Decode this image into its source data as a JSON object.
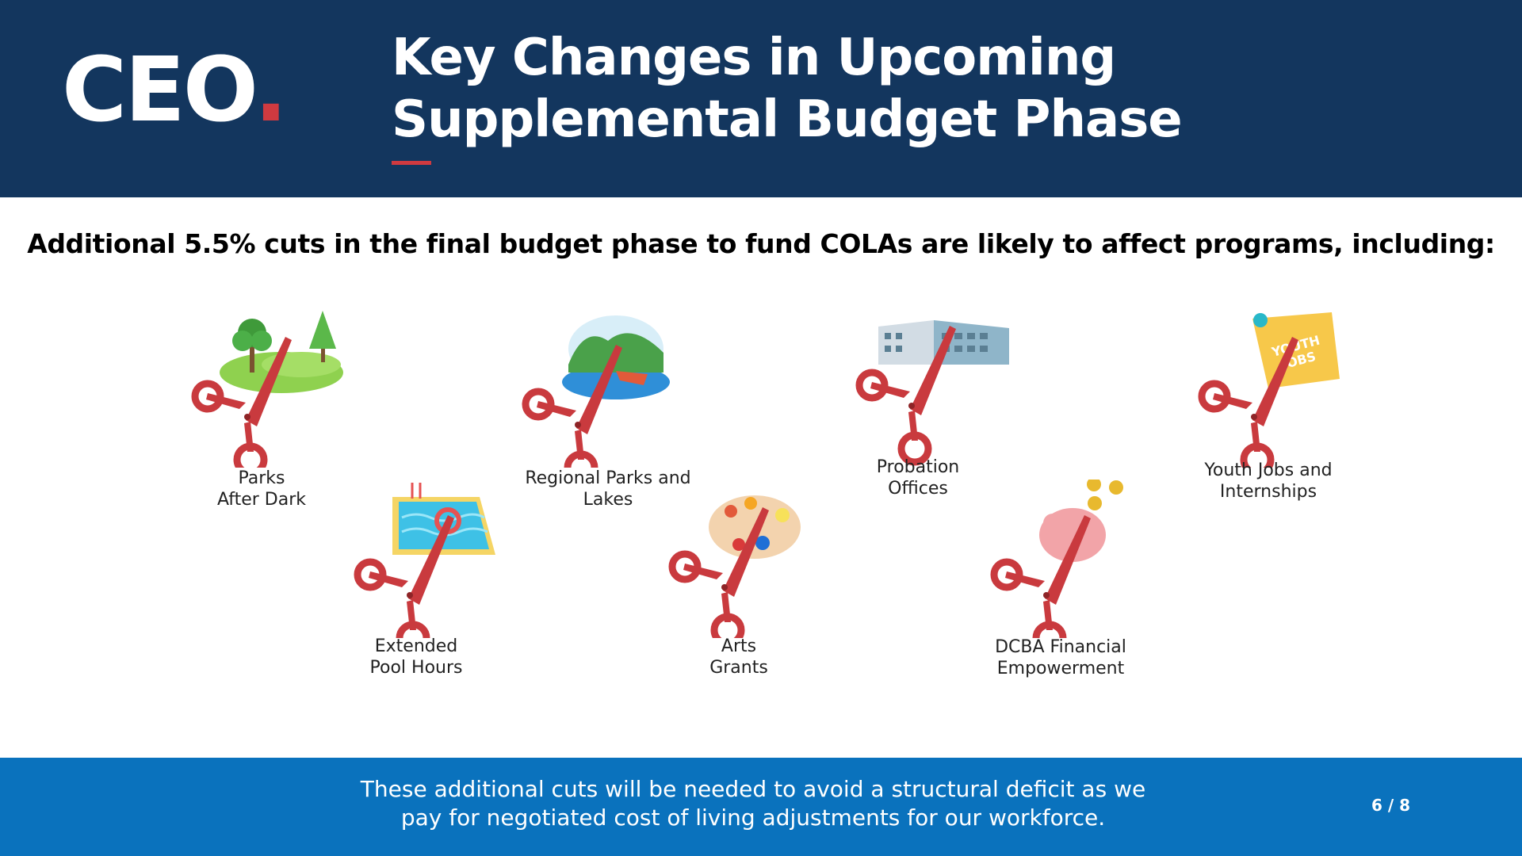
{
  "header": {
    "logo_text": "CEO",
    "logo_dot": ".",
    "title_line1": "Key Changes in Upcoming",
    "title_line2": "Supplemental Budget Phase"
  },
  "subtitle": "Additional 5.5% cuts in the final budget phase to fund COLAs are likely to affect programs, including:",
  "programs": [
    {
      "line1": "Parks",
      "line2": "After Dark",
      "icon": "park-icon"
    },
    {
      "line1": "Extended",
      "line2": "Pool Hours",
      "icon": "pool-icon"
    },
    {
      "line1": "Regional Parks and",
      "line2": "Lakes",
      "icon": "lake-icon"
    },
    {
      "line1": "Arts",
      "line2": "Grants",
      "icon": "palette-icon"
    },
    {
      "line1": "Probation",
      "line2": "Offices",
      "icon": "building-icon"
    },
    {
      "line1": "DCBA Financial",
      "line2": "Empowerment",
      "icon": "piggy-bank-icon"
    },
    {
      "line1": "Youth Jobs and",
      "line2": "Internships",
      "icon": "youth-jobs-icon"
    }
  ],
  "youth_jobs_sign": {
    "line1": "YOUTH",
    "line2": "JOBS"
  },
  "footer": {
    "line1": "These additional cuts will be needed to avoid a structural deficit as we",
    "line2": "pay for negotiated cost of living adjustments for our workforce.",
    "page_number": "6 / 8"
  },
  "colors": {
    "header_bg": "#13365e",
    "accent_red": "#cf3a40",
    "footer_bg": "#0a72bd",
    "scissors": "#cc3a3f"
  }
}
